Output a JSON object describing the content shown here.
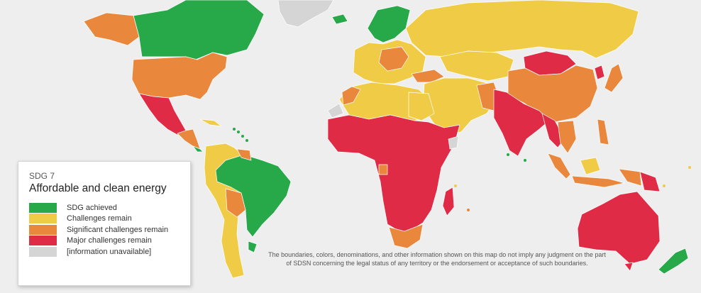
{
  "colors": {
    "ocean": "#eeeeee",
    "achieved": "#27a94a",
    "challenges": "#f0cc46",
    "significant": "#e9873c",
    "major": "#df2b45",
    "unavailable": "#d5d5d5"
  },
  "legend": {
    "subtitle": "SDG 7",
    "title": "Affordable and clean energy",
    "items": [
      {
        "key": "achieved",
        "label": "SDG achieved"
      },
      {
        "key": "challenges",
        "label": "Challenges remain"
      },
      {
        "key": "significant",
        "label": "Significant challenges remain"
      },
      {
        "key": "major",
        "label": "Major challenges remain"
      },
      {
        "key": "unavailable",
        "label": "[information unavailable]"
      }
    ]
  },
  "disclaimer": "The boundaries, colors, denominations, and other information shown on this map do not imply any judgment on the part of SDSN concerning the legal status of any territory or the endorsement or acceptance of such boundaries."
}
